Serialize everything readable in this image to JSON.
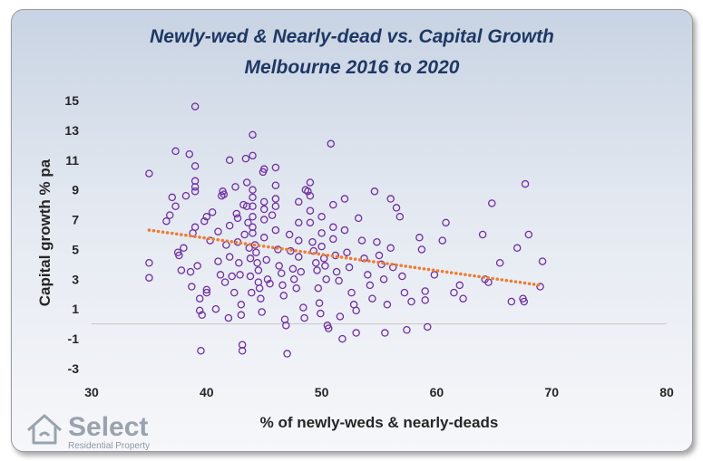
{
  "chart_data": {
    "type": "scatter",
    "title": "Newly-wed & Nearly-dead  vs. Capital Growth",
    "subtitle": "Melbourne  2016 to 2020",
    "xlabel": "% of newly-weds & nearly-deads",
    "ylabel": "Capital growth % pa",
    "xlim": [
      30,
      80
    ],
    "ylim": [
      -3,
      15
    ],
    "x_ticks": [
      "30",
      "40",
      "50",
      "60",
      "70",
      "80"
    ],
    "y_ticks": [
      "15",
      "13",
      "11",
      "9",
      "7",
      "5",
      "3",
      "1",
      "-1",
      "-3"
    ],
    "grid": false,
    "marker_color": "#7030a0",
    "trend_color": "#ed7d31",
    "trendline": {
      "type": "linear",
      "style": "dotted",
      "x": [
        35,
        69
      ],
      "y": [
        6.3,
        2.6
      ]
    },
    "points": [
      [
        35,
        10.1
      ],
      [
        35,
        4.1
      ],
      [
        35,
        3.1
      ],
      [
        36.5,
        6.9
      ],
      [
        36.8,
        7.3
      ],
      [
        37,
        8.5
      ],
      [
        37.3,
        11.6
      ],
      [
        37.3,
        7.9
      ],
      [
        37.5,
        4.8
      ],
      [
        37.6,
        4.6
      ],
      [
        37.8,
        3.6
      ],
      [
        38,
        5.1
      ],
      [
        38.2,
        8.6
      ],
      [
        38.5,
        11.4
      ],
      [
        38.6,
        3.5
      ],
      [
        38.7,
        2.5
      ],
      [
        38.8,
        6.1
      ],
      [
        39,
        14.6
      ],
      [
        39,
        10.6
      ],
      [
        39,
        9.6
      ],
      [
        39,
        9.2
      ],
      [
        39,
        8.9
      ],
      [
        39,
        6.5
      ],
      [
        39.2,
        3.9
      ],
      [
        39.4,
        1.7
      ],
      [
        39.4,
        0.9
      ],
      [
        39.5,
        -1.8
      ],
      [
        39.6,
        0.6
      ],
      [
        39.8,
        6.9
      ],
      [
        40,
        7.2
      ],
      [
        40,
        2.3
      ],
      [
        40,
        2.1
      ],
      [
        40.3,
        5.6
      ],
      [
        40.5,
        7.5
      ],
      [
        40.8,
        1.0
      ],
      [
        41,
        4.2
      ],
      [
        41,
        6.2
      ],
      [
        41.2,
        3.3
      ],
      [
        41.3,
        8.6
      ],
      [
        41.4,
        8.9
      ],
      [
        41.5,
        8.7
      ],
      [
        41.6,
        2.8
      ],
      [
        41.7,
        5.3
      ],
      [
        41.9,
        0.4
      ],
      [
        42,
        11.0
      ],
      [
        42,
        6.6
      ],
      [
        42,
        4.5
      ],
      [
        42.2,
        3.2
      ],
      [
        42.4,
        2.1
      ],
      [
        42.5,
        9.2
      ],
      [
        42.6,
        7.4
      ],
      [
        42.7,
        7.1
      ],
      [
        42.7,
        5.5
      ],
      [
        42.8,
        4.1
      ],
      [
        42.9,
        3.3
      ],
      [
        43,
        1.3
      ],
      [
        43,
        0.6
      ],
      [
        43.1,
        -1.4
      ],
      [
        43.1,
        -1.8
      ],
      [
        43.2,
        8.0
      ],
      [
        43.3,
        6.0
      ],
      [
        43.4,
        11.1
      ],
      [
        43.5,
        9.5
      ],
      [
        43.5,
        7.9
      ],
      [
        43.6,
        6.8
      ],
      [
        43.7,
        5.1
      ],
      [
        43.8,
        4.4
      ],
      [
        43.8,
        3.2
      ],
      [
        43.9,
        2.1
      ],
      [
        44,
        12.7
      ],
      [
        44,
        11.3
      ],
      [
        44,
        9.0
      ],
      [
        44,
        8.5
      ],
      [
        44,
        7.9
      ],
      [
        44,
        7.2
      ],
      [
        44,
        6.5
      ],
      [
        44,
        6.1
      ],
      [
        44.2,
        5.3
      ],
      [
        44.3,
        4.8
      ],
      [
        44.4,
        4.1
      ],
      [
        44.5,
        3.6
      ],
      [
        44.5,
        2.8
      ],
      [
        44.6,
        2.4
      ],
      [
        44.7,
        1.7
      ],
      [
        44.8,
        0.8
      ],
      [
        44.9,
        10.2
      ],
      [
        45,
        10.4
      ],
      [
        45,
        8.2
      ],
      [
        45,
        7.7
      ],
      [
        45,
        7.0
      ],
      [
        45,
        5.8
      ],
      [
        45.2,
        4.3
      ],
      [
        45.3,
        3.0
      ],
      [
        45.5,
        2.7
      ],
      [
        45.7,
        7.3
      ],
      [
        46,
        10.5
      ],
      [
        46,
        9.3
      ],
      [
        46,
        8.4
      ],
      [
        46,
        7.9
      ],
      [
        46,
        6.3
      ],
      [
        46.2,
        5.0
      ],
      [
        46.3,
        3.9
      ],
      [
        46.5,
        3.4
      ],
      [
        46.6,
        2.6
      ],
      [
        46.7,
        1.9
      ],
      [
        46.8,
        0.3
      ],
      [
        46.9,
        -0.1
      ],
      [
        47,
        -2.0
      ],
      [
        47.2,
        6.0
      ],
      [
        47.3,
        4.9
      ],
      [
        47.5,
        3.7
      ],
      [
        47.6,
        3.0
      ],
      [
        47.8,
        2.4
      ],
      [
        48,
        8.2
      ],
      [
        48,
        6.8
      ],
      [
        48,
        5.6
      ],
      [
        48,
        4.5
      ],
      [
        48.2,
        3.5
      ],
      [
        48.4,
        1.1
      ],
      [
        48.5,
        0.4
      ],
      [
        48.6,
        9.0
      ],
      [
        48.8,
        8.9
      ],
      [
        49,
        9.5
      ],
      [
        49,
        8.6
      ],
      [
        49,
        7.6
      ],
      [
        49,
        6.8
      ],
      [
        49.2,
        5.5
      ],
      [
        49.3,
        4.9
      ],
      [
        49.5,
        4.1
      ],
      [
        49.6,
        3.6
      ],
      [
        49.7,
        2.4
      ],
      [
        49.8,
        1.4
      ],
      [
        49.9,
        0.7
      ],
      [
        50,
        7.2
      ],
      [
        50,
        6.1
      ],
      [
        50,
        5.2
      ],
      [
        50.2,
        4.4
      ],
      [
        50.3,
        3.9
      ],
      [
        50.4,
        3.0
      ],
      [
        50.5,
        -0.1
      ],
      [
        50.6,
        -0.3
      ],
      [
        50.8,
        12.1
      ],
      [
        51,
        8.0
      ],
      [
        51,
        6.5
      ],
      [
        51,
        5.7
      ],
      [
        51.2,
        4.6
      ],
      [
        51.3,
        3.5
      ],
      [
        51.5,
        2.9
      ],
      [
        51.6,
        0.5
      ],
      [
        51.8,
        -1.0
      ],
      [
        52,
        8.4
      ],
      [
        52,
        6.3
      ],
      [
        52.2,
        4.8
      ],
      [
        52.4,
        3.8
      ],
      [
        52.6,
        2.1
      ],
      [
        52.8,
        1.3
      ],
      [
        53,
        0.9
      ],
      [
        53,
        -0.6
      ],
      [
        53.2,
        7.1
      ],
      [
        53.5,
        5.6
      ],
      [
        53.7,
        4.4
      ],
      [
        54,
        3.3
      ],
      [
        54.2,
        2.6
      ],
      [
        54.4,
        1.7
      ],
      [
        54.6,
        8.9
      ],
      [
        54.8,
        5.5
      ],
      [
        55,
        4.6
      ],
      [
        55.2,
        4.0
      ],
      [
        55.4,
        3.0
      ],
      [
        55.5,
        -0.6
      ],
      [
        55.7,
        1.3
      ],
      [
        56,
        8.4
      ],
      [
        56,
        5.1
      ],
      [
        56.2,
        3.8
      ],
      [
        56.5,
        7.8
      ],
      [
        56.8,
        7.2
      ],
      [
        57,
        3.2
      ],
      [
        57.2,
        2.1
      ],
      [
        57.4,
        -0.4
      ],
      [
        57.8,
        1.5
      ],
      [
        58.5,
        5.8
      ],
      [
        58.7,
        5.0
      ],
      [
        59,
        2.2
      ],
      [
        59,
        1.6
      ],
      [
        59.2,
        -0.2
      ],
      [
        59.8,
        3.3
      ],
      [
        60.5,
        5.6
      ],
      [
        60.8,
        6.8
      ],
      [
        61.5,
        2.1
      ],
      [
        62,
        2.6
      ],
      [
        62.3,
        1.7
      ],
      [
        64,
        6.0
      ],
      [
        64.2,
        3.0
      ],
      [
        64.5,
        2.8
      ],
      [
        64.8,
        8.1
      ],
      [
        65.5,
        4.1
      ],
      [
        66.5,
        1.5
      ],
      [
        67,
        5.1
      ],
      [
        67.5,
        1.7
      ],
      [
        67.6,
        1.5
      ],
      [
        67.7,
        9.4
      ],
      [
        68,
        6.0
      ],
      [
        69,
        2.5
      ],
      [
        69.2,
        4.2
      ]
    ]
  },
  "logo": {
    "name": "Select",
    "tagline": "Residential Property",
    "icon": "house-icon"
  }
}
